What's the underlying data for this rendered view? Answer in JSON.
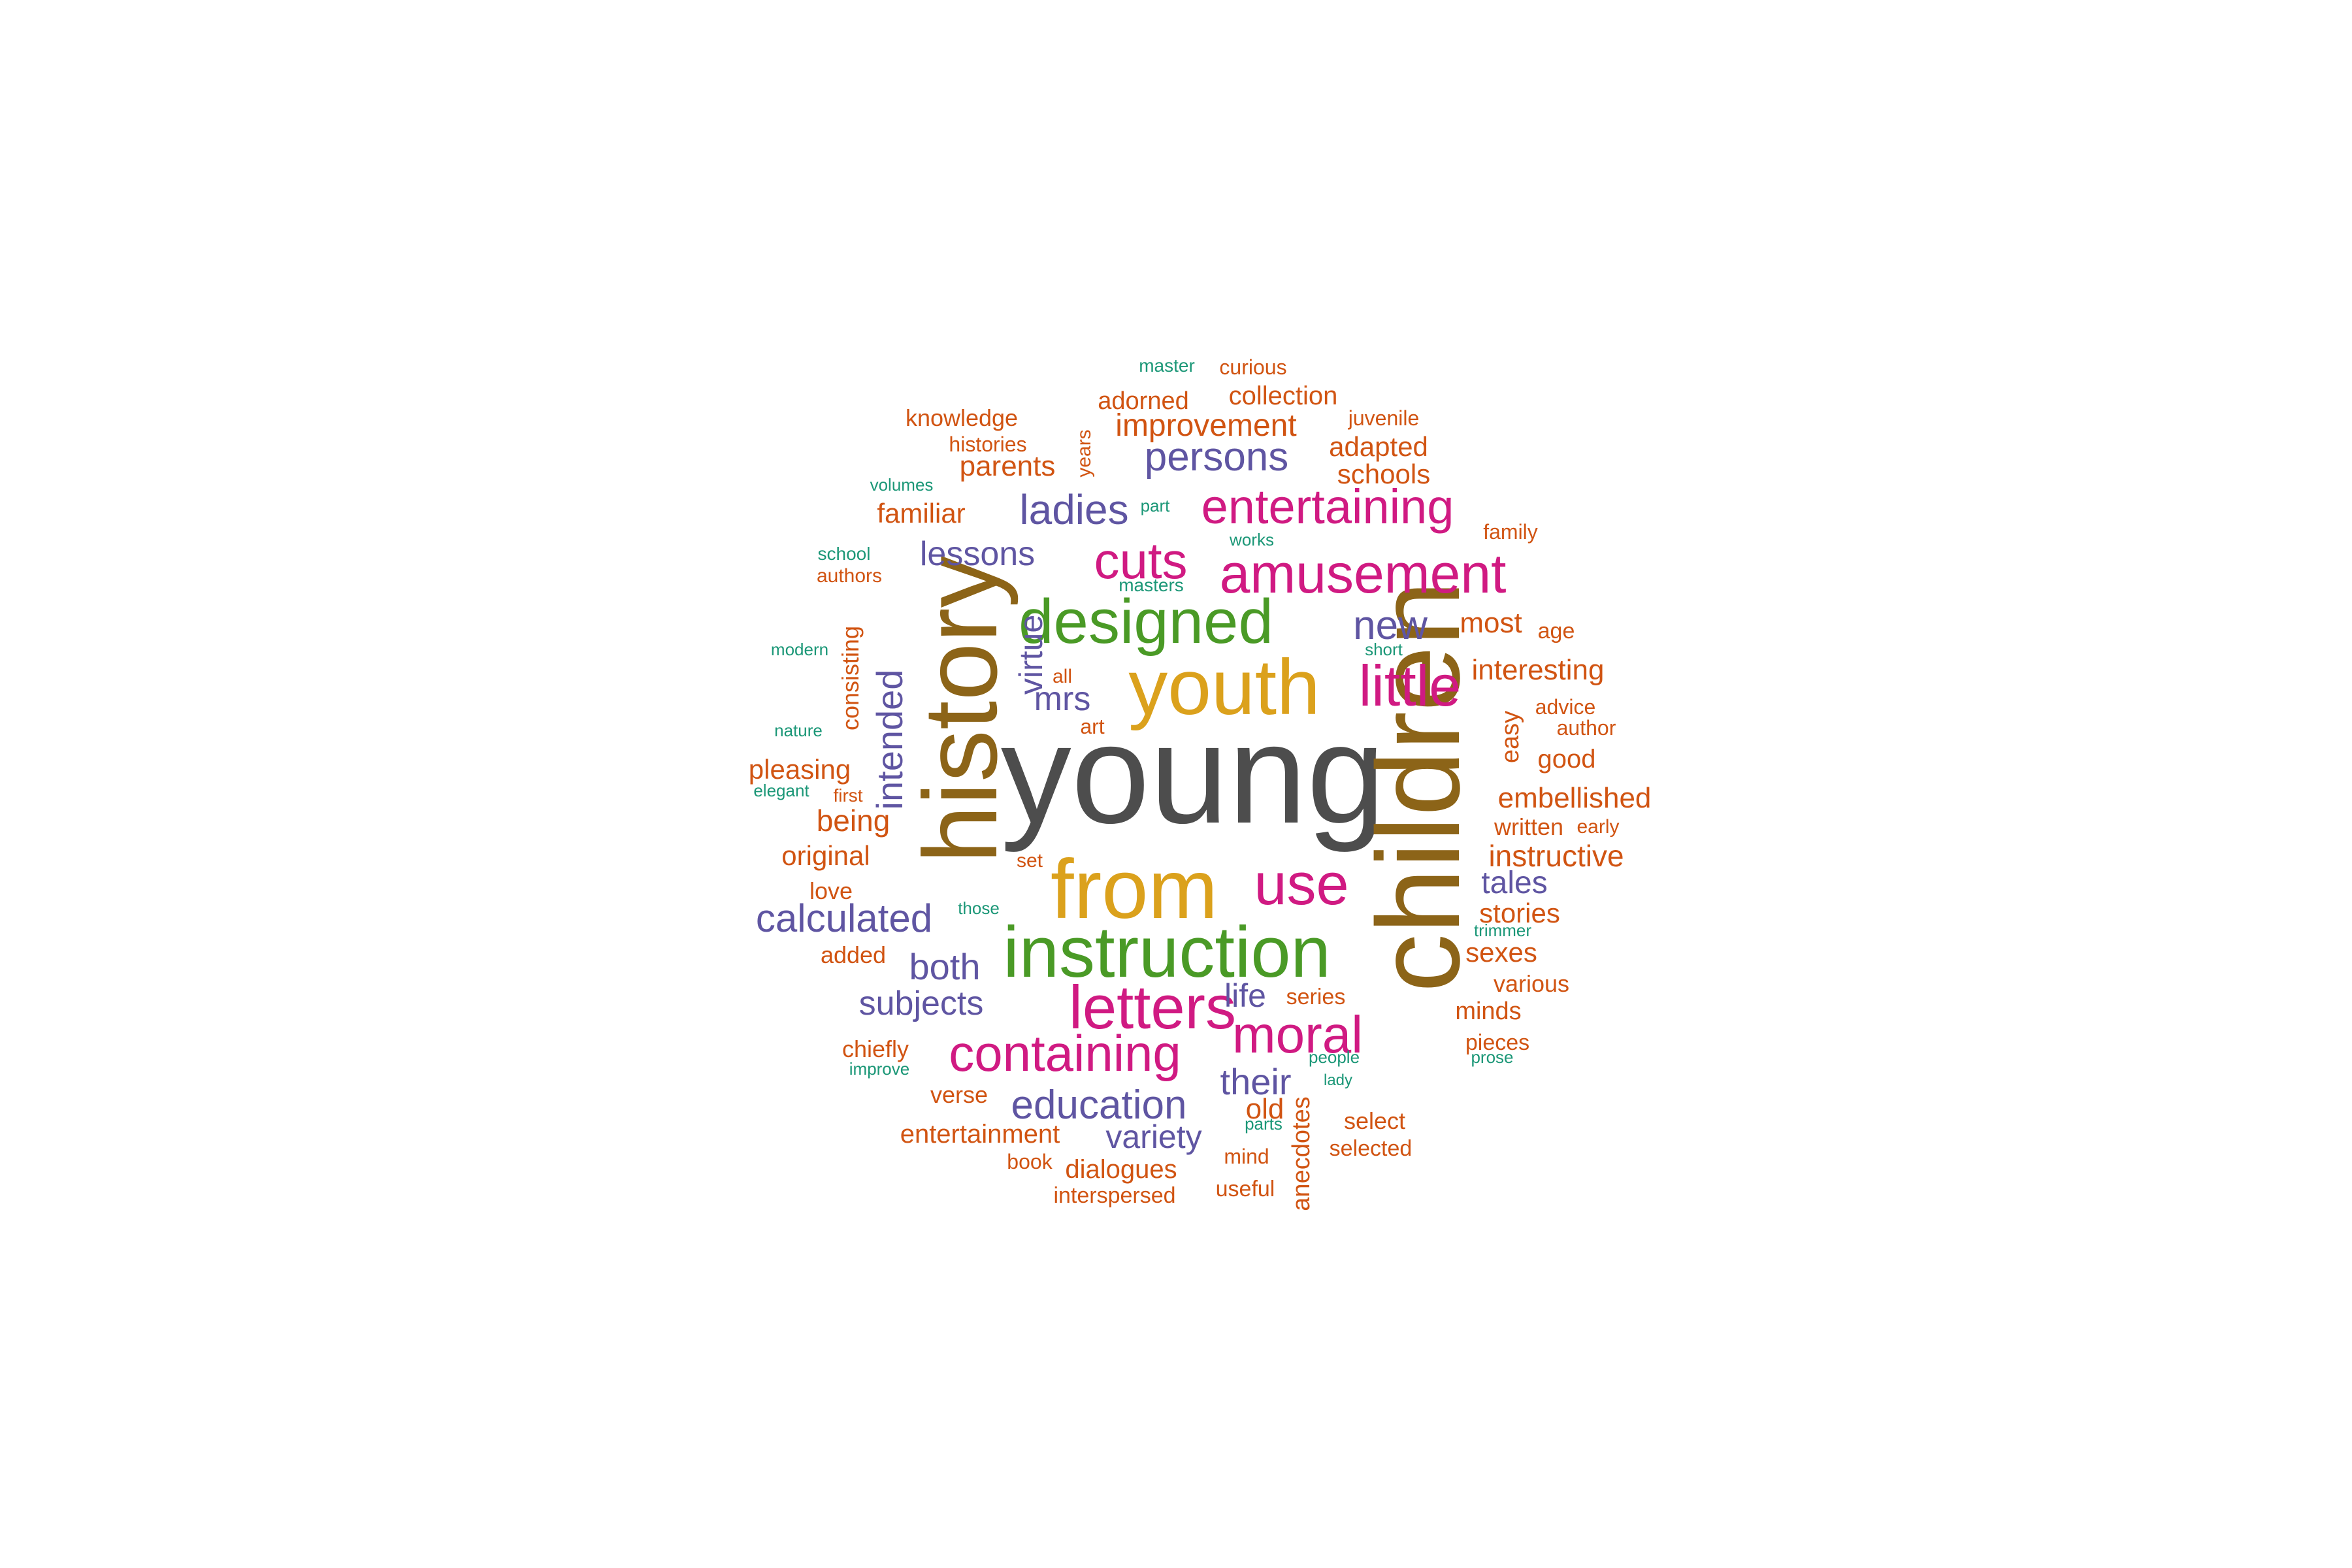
{
  "palette": {
    "gray": "#4d4d4d",
    "gold": "#dba11c",
    "brown": "#8c6418",
    "green": "#4a9a26",
    "magenta": "#d01a82",
    "purple": "#5f55a2",
    "orange": "#d15412",
    "teal": "#1b9777"
  },
  "words": [
    {
      "text": "young",
      "color": "gray"
    },
    {
      "text": "history",
      "color": "brown"
    },
    {
      "text": "children",
      "color": "brown"
    },
    {
      "text": "youth",
      "color": "gold"
    },
    {
      "text": "from",
      "color": "gold"
    },
    {
      "text": "instruction",
      "color": "green"
    },
    {
      "text": "designed",
      "color": "green"
    },
    {
      "text": "amusement",
      "color": "magenta"
    },
    {
      "text": "entertaining",
      "color": "magenta"
    },
    {
      "text": "cuts",
      "color": "magenta"
    },
    {
      "text": "little",
      "color": "magenta"
    },
    {
      "text": "use",
      "color": "magenta"
    },
    {
      "text": "letters",
      "color": "magenta"
    },
    {
      "text": "containing",
      "color": "magenta"
    },
    {
      "text": "moral",
      "color": "magenta"
    },
    {
      "text": "ladies",
      "color": "purple"
    },
    {
      "text": "persons",
      "color": "purple"
    },
    {
      "text": "new",
      "color": "purple"
    },
    {
      "text": "lessons",
      "color": "purple"
    },
    {
      "text": "mrs",
      "color": "purple"
    },
    {
      "text": "virtue",
      "color": "purple"
    },
    {
      "text": "intended",
      "color": "purple"
    },
    {
      "text": "calculated",
      "color": "purple"
    },
    {
      "text": "both",
      "color": "purple"
    },
    {
      "text": "subjects",
      "color": "purple"
    },
    {
      "text": "life",
      "color": "purple"
    },
    {
      "text": "their",
      "color": "purple"
    },
    {
      "text": "education",
      "color": "purple"
    },
    {
      "text": "variety",
      "color": "purple"
    },
    {
      "text": "tales",
      "color": "purple"
    },
    {
      "text": "improvement",
      "color": "orange"
    },
    {
      "text": "adorned",
      "color": "orange"
    },
    {
      "text": "collection",
      "color": "orange"
    },
    {
      "text": "curious",
      "color": "orange"
    },
    {
      "text": "knowledge",
      "color": "orange"
    },
    {
      "text": "histories",
      "color": "orange"
    },
    {
      "text": "parents",
      "color": "orange"
    },
    {
      "text": "years",
      "color": "orange"
    },
    {
      "text": "juvenile",
      "color": "orange"
    },
    {
      "text": "adapted",
      "color": "orange"
    },
    {
      "text": "schools",
      "color": "orange"
    },
    {
      "text": "familiar",
      "color": "orange"
    },
    {
      "text": "family",
      "color": "orange"
    },
    {
      "text": "authors",
      "color": "orange"
    },
    {
      "text": "most",
      "color": "orange"
    },
    {
      "text": "age",
      "color": "orange"
    },
    {
      "text": "interesting",
      "color": "orange"
    },
    {
      "text": "consisting",
      "color": "orange"
    },
    {
      "text": "all",
      "color": "orange"
    },
    {
      "text": "art",
      "color": "orange"
    },
    {
      "text": "easy",
      "color": "orange"
    },
    {
      "text": "advice",
      "color": "orange"
    },
    {
      "text": "author",
      "color": "orange"
    },
    {
      "text": "good",
      "color": "orange"
    },
    {
      "text": "pleasing",
      "color": "orange"
    },
    {
      "text": "first",
      "color": "orange"
    },
    {
      "text": "embellished",
      "color": "orange"
    },
    {
      "text": "being",
      "color": "orange"
    },
    {
      "text": "written",
      "color": "orange"
    },
    {
      "text": "early",
      "color": "orange"
    },
    {
      "text": "original",
      "color": "orange"
    },
    {
      "text": "instructive",
      "color": "orange"
    },
    {
      "text": "set",
      "color": "orange"
    },
    {
      "text": "love",
      "color": "orange"
    },
    {
      "text": "stories",
      "color": "orange"
    },
    {
      "text": "added",
      "color": "orange"
    },
    {
      "text": "sexes",
      "color": "orange"
    },
    {
      "text": "various",
      "color": "orange"
    },
    {
      "text": "series",
      "color": "orange"
    },
    {
      "text": "minds",
      "color": "orange"
    },
    {
      "text": "chiefly",
      "color": "orange"
    },
    {
      "text": "pieces",
      "color": "orange"
    },
    {
      "text": "verse",
      "color": "orange"
    },
    {
      "text": "old",
      "color": "orange"
    },
    {
      "text": "select",
      "color": "orange"
    },
    {
      "text": "entertainment",
      "color": "orange"
    },
    {
      "text": "anecdotes",
      "color": "orange"
    },
    {
      "text": "selected",
      "color": "orange"
    },
    {
      "text": "book",
      "color": "orange"
    },
    {
      "text": "dialogues",
      "color": "orange"
    },
    {
      "text": "mind",
      "color": "orange"
    },
    {
      "text": "useful",
      "color": "orange"
    },
    {
      "text": "interspersed",
      "color": "orange"
    },
    {
      "text": "master",
      "color": "teal"
    },
    {
      "text": "volumes",
      "color": "teal"
    },
    {
      "text": "part",
      "color": "teal"
    },
    {
      "text": "works",
      "color": "teal"
    },
    {
      "text": "school",
      "color": "teal"
    },
    {
      "text": "masters",
      "color": "teal"
    },
    {
      "text": "modern",
      "color": "teal"
    },
    {
      "text": "short",
      "color": "teal"
    },
    {
      "text": "nature",
      "color": "teal"
    },
    {
      "text": "elegant",
      "color": "teal"
    },
    {
      "text": "those",
      "color": "teal"
    },
    {
      "text": "trimmer",
      "color": "teal"
    },
    {
      "text": "people",
      "color": "teal"
    },
    {
      "text": "lady",
      "color": "teal"
    },
    {
      "text": "prose",
      "color": "teal"
    },
    {
      "text": "improve",
      "color": "teal"
    },
    {
      "text": "parts",
      "color": "teal"
    }
  ]
}
